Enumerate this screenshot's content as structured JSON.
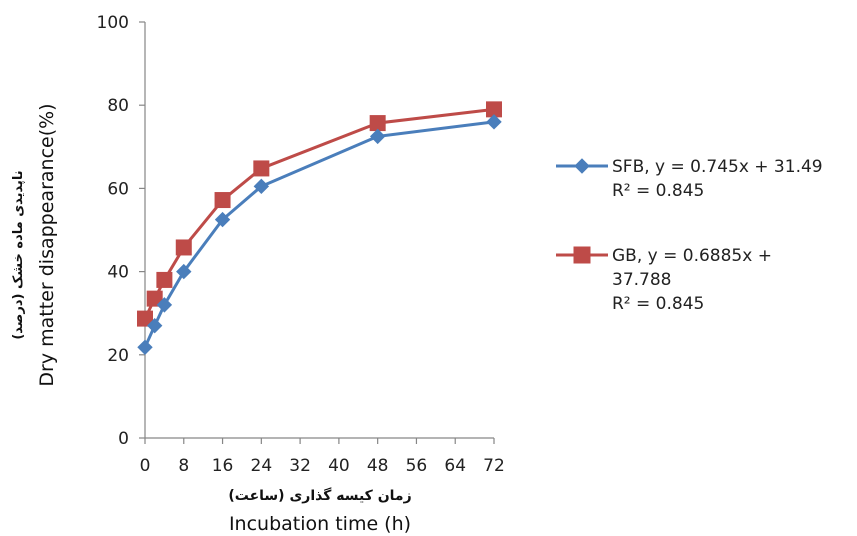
{
  "chart_data": {
    "type": "line",
    "title": "",
    "xlabel": "Incubation time (h)",
    "xlabel_fa": "زمان کیسه گذاری (ساعت)",
    "ylabel": "Dry matter disappearance(%)",
    "ylabel_fa": "ناپدیدی ماده خشک (درصد)",
    "xlim": [
      0,
      72
    ],
    "ylim": [
      0,
      100
    ],
    "x_ticks": [
      0,
      8,
      16,
      24,
      32,
      40,
      48,
      56,
      64,
      72
    ],
    "y_ticks": [
      0,
      20,
      40,
      60,
      80,
      100
    ],
    "grid": false,
    "legend_position": "right",
    "series": [
      {
        "name": "SFB",
        "legend_lines": [
          "SFB, y = 0.745x + 31.49",
          "R² = 0.845"
        ],
        "color": "#4a7ebb",
        "marker": "diamond",
        "x": [
          0,
          2,
          4,
          8,
          16,
          24,
          48,
          72
        ],
        "y": [
          21.8,
          27,
          32,
          40,
          52.5,
          60.5,
          72.5,
          76
        ]
      },
      {
        "name": "GB",
        "legend_lines": [
          "GB, y = 0.6885x +",
          "37.788",
          "R² = 0.845"
        ],
        "color": "#be4b48",
        "marker": "square",
        "x": [
          0,
          2,
          4,
          8,
          16,
          24,
          48,
          72
        ],
        "y": [
          28.7,
          33.5,
          38,
          45.8,
          57.2,
          64.8,
          75.7,
          79
        ]
      }
    ]
  }
}
